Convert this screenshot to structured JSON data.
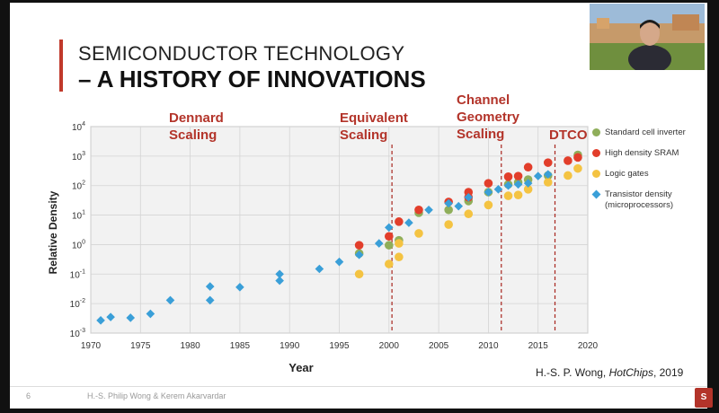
{
  "slide": {
    "title_line1": "SEMICONDUCTOR TECHNOLOGY",
    "title_line2": "– A HISTORY OF INNOVATIONS",
    "page_number": "6",
    "footer_authors": "H.-S. Philip Wong & Kerem Akarvardar",
    "citation_prefix": "H.-S. P. Wong, ",
    "citation_source": "HotChips",
    "citation_year": ", 2019",
    "accent_color": "#b3342a"
  },
  "eras": [
    {
      "line1": "Dennard",
      "line2": "Scaling"
    },
    {
      "line1": "Equivalent",
      "line2": "Scaling"
    },
    {
      "line1": "Channel",
      "line2": "Geometry",
      "line3": "Scaling"
    },
    {
      "line1": "DTCO"
    }
  ],
  "chart_data": {
    "type": "scatter",
    "xlabel": "Year",
    "ylabel": "Relative Density",
    "xlim": [
      1970,
      2020
    ],
    "x_ticks": [
      "1970",
      "1975",
      "1980",
      "1985",
      "1990",
      "1995",
      "2000",
      "2005",
      "2010",
      "2015",
      "2020"
    ],
    "ylim_log10": [
      -3,
      4
    ],
    "y_ticks": [
      {
        "base": "10",
        "exp": "4"
      },
      {
        "base": "10",
        "exp": "3"
      },
      {
        "base": "10",
        "exp": "2"
      },
      {
        "base": "10",
        "exp": "1"
      },
      {
        "base": "10",
        "exp": "0"
      },
      {
        "base": "10",
        "exp": "-1"
      },
      {
        "base": "10",
        "exp": "-2"
      },
      {
        "base": "10",
        "exp": "-3"
      }
    ],
    "grid": true,
    "era_boundaries": [
      2000.3,
      2011.3,
      2016.7
    ],
    "series": [
      {
        "name": "Standard cell inverter",
        "marker": "circle",
        "color": "#8fae5a",
        "x": [
          1997,
          2000,
          2001,
          2003,
          2006,
          2008,
          2010,
          2012,
          2013,
          2014,
          2016,
          2019
        ],
        "y": [
          0.5,
          0.95,
          1.4,
          12,
          15,
          30,
          60,
          110,
          130,
          160,
          220,
          1100
        ]
      },
      {
        "name": "High density SRAM",
        "marker": "circle",
        "color": "#e23e2b",
        "x": [
          1997,
          2000,
          2001,
          2003,
          2006,
          2008,
          2008,
          2010,
          2012,
          2013,
          2014,
          2016,
          2018,
          2019
        ],
        "y": [
          0.95,
          1.9,
          6,
          15,
          28,
          40,
          60,
          120,
          200,
          210,
          420,
          600,
          700,
          900
        ]
      },
      {
        "name": "Logic gates",
        "marker": "circle",
        "color": "#f4c342",
        "x": [
          1997,
          2000,
          2001,
          2001,
          2003,
          2006,
          2008,
          2010,
          2012,
          2013,
          2014,
          2016,
          2018,
          2019
        ],
        "y": [
          0.1,
          0.22,
          0.38,
          1.1,
          2.4,
          4.8,
          11,
          22,
          45,
          48,
          75,
          130,
          220,
          380
        ]
      },
      {
        "name": "Transistor density\n(microprocessors)",
        "legend_line1": "Transistor density",
        "legend_line2": "(microprocessors)",
        "marker": "diamond",
        "color": "#3a9fd8",
        "x": [
          1971,
          1972,
          1974,
          1976,
          1978,
          1982,
          1982,
          1985,
          1989,
          1989,
          1993,
          1995,
          1997,
          1999,
          2000,
          2002,
          2004,
          2006,
          2007,
          2008,
          2010,
          2011,
          2012,
          2013,
          2014,
          2015,
          2016
        ],
        "y": [
          0.0027,
          0.0035,
          0.0033,
          0.0045,
          0.013,
          0.013,
          0.038,
          0.036,
          0.06,
          0.1,
          0.15,
          0.26,
          0.45,
          1.1,
          3.8,
          5.5,
          15,
          25,
          20,
          40,
          60,
          75,
          100,
          110,
          120,
          210,
          240
        ]
      }
    ]
  }
}
